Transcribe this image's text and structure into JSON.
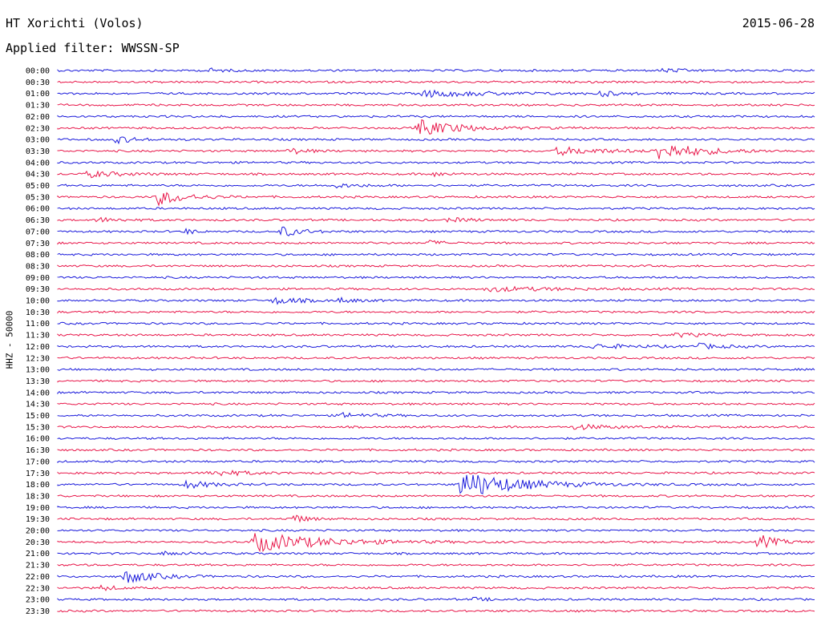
{
  "header": {
    "station": "HT Xorichti (Volos)",
    "date": "2015-06-28",
    "filter": "Applied filter: WWSSN-SP"
  },
  "colors": {
    "blue": "#1a1adb",
    "red": "#e8174a"
  },
  "chart_data": {
    "type": "line",
    "ylabel": "HHZ - 50000",
    "rows": [
      "00:00",
      "00:30",
      "01:00",
      "01:30",
      "02:00",
      "02:30",
      "03:00",
      "03:30",
      "04:00",
      "04:30",
      "05:00",
      "05:30",
      "06:00",
      "06:30",
      "07:00",
      "07:30",
      "08:00",
      "08:30",
      "09:00",
      "09:30",
      "10:00",
      "10:30",
      "11:00",
      "11:30",
      "12:00",
      "12:30",
      "13:00",
      "13:30",
      "14:00",
      "14:30",
      "15:00",
      "15:30",
      "16:00",
      "16:30",
      "17:00",
      "17:30",
      "18:00",
      "18:30",
      "19:00",
      "19:30",
      "20:00",
      "20:30",
      "21:00",
      "21:30",
      "22:00",
      "22:30",
      "23:00",
      "23:30"
    ],
    "row_minutes": 30,
    "events": [
      {
        "row": 0,
        "minute": 6.0,
        "amp": 0.3,
        "dur": 0.5
      },
      {
        "row": 0,
        "minute": 24.0,
        "amp": 0.3,
        "dur": 0.8
      },
      {
        "row": 2,
        "minute": 14.5,
        "amp": 0.5,
        "dur": 2.5
      },
      {
        "row": 2,
        "minute": 21.5,
        "amp": 0.45,
        "dur": 0.6
      },
      {
        "row": 5,
        "minute": 14.3,
        "amp": 1.3,
        "dur": 1.5
      },
      {
        "row": 6,
        "minute": 2.3,
        "amp": 0.5,
        "dur": 0.8
      },
      {
        "row": 7,
        "minute": 9.2,
        "amp": 0.5,
        "dur": 0.6
      },
      {
        "row": 7,
        "minute": 19.8,
        "amp": 0.6,
        "dur": 1.8
      },
      {
        "row": 7,
        "minute": 23.8,
        "amp": 1.4,
        "dur": 1.5
      },
      {
        "row": 9,
        "minute": 1.2,
        "amp": 0.5,
        "dur": 1.2
      },
      {
        "row": 9,
        "minute": 14.8,
        "amp": 0.35,
        "dur": 0.6
      },
      {
        "row": 10,
        "minute": 10.8,
        "amp": 0.35,
        "dur": 1.0
      },
      {
        "row": 11,
        "minute": 4.0,
        "amp": 1.2,
        "dur": 1.0
      },
      {
        "row": 13,
        "minute": 1.6,
        "amp": 0.35,
        "dur": 0.8
      },
      {
        "row": 13,
        "minute": 15.5,
        "amp": 0.3,
        "dur": 1.0
      },
      {
        "row": 14,
        "minute": 8.9,
        "amp": 0.8,
        "dur": 0.7
      },
      {
        "row": 14,
        "minute": 5.1,
        "amp": 0.45,
        "dur": 0.3
      },
      {
        "row": 15,
        "minute": 14.7,
        "amp": 0.35,
        "dur": 0.6
      },
      {
        "row": 19,
        "minute": 17.0,
        "amp": 0.35,
        "dur": 2.5
      },
      {
        "row": 20,
        "minute": 8.6,
        "amp": 0.6,
        "dur": 0.9
      },
      {
        "row": 20,
        "minute": 11.2,
        "amp": 0.35,
        "dur": 0.6
      },
      {
        "row": 23,
        "minute": 24.5,
        "amp": 0.3,
        "dur": 1.0
      },
      {
        "row": 24,
        "minute": 21.2,
        "amp": 0.35,
        "dur": 1.5
      },
      {
        "row": 24,
        "minute": 25.3,
        "amp": 0.45,
        "dur": 0.8
      },
      {
        "row": 30,
        "minute": 11.3,
        "amp": 0.35,
        "dur": 1.0
      },
      {
        "row": 31,
        "minute": 20.5,
        "amp": 0.35,
        "dur": 1.5
      },
      {
        "row": 35,
        "minute": 6.0,
        "amp": 0.45,
        "dur": 0.3
      },
      {
        "row": 35,
        "minute": 6.5,
        "amp": 0.35,
        "dur": 1.2
      },
      {
        "row": 36,
        "minute": 5.1,
        "amp": 0.6,
        "dur": 0.9
      },
      {
        "row": 36,
        "minute": 16.0,
        "amp": 2.2,
        "dur": 2.0
      },
      {
        "row": 39,
        "minute": 9.3,
        "amp": 0.75,
        "dur": 0.5
      },
      {
        "row": 41,
        "minute": 7.8,
        "amp": 1.5,
        "dur": 2.5
      },
      {
        "row": 41,
        "minute": 27.8,
        "amp": 1.2,
        "dur": 0.6
      },
      {
        "row": 42,
        "minute": 4.2,
        "amp": 0.25,
        "dur": 1.0
      },
      {
        "row": 44,
        "minute": 2.7,
        "amp": 1.1,
        "dur": 1.0
      },
      {
        "row": 45,
        "minute": 1.7,
        "amp": 0.4,
        "dur": 0.6
      },
      {
        "row": 46,
        "minute": 16.5,
        "amp": 0.25,
        "dur": 0.6
      }
    ]
  }
}
